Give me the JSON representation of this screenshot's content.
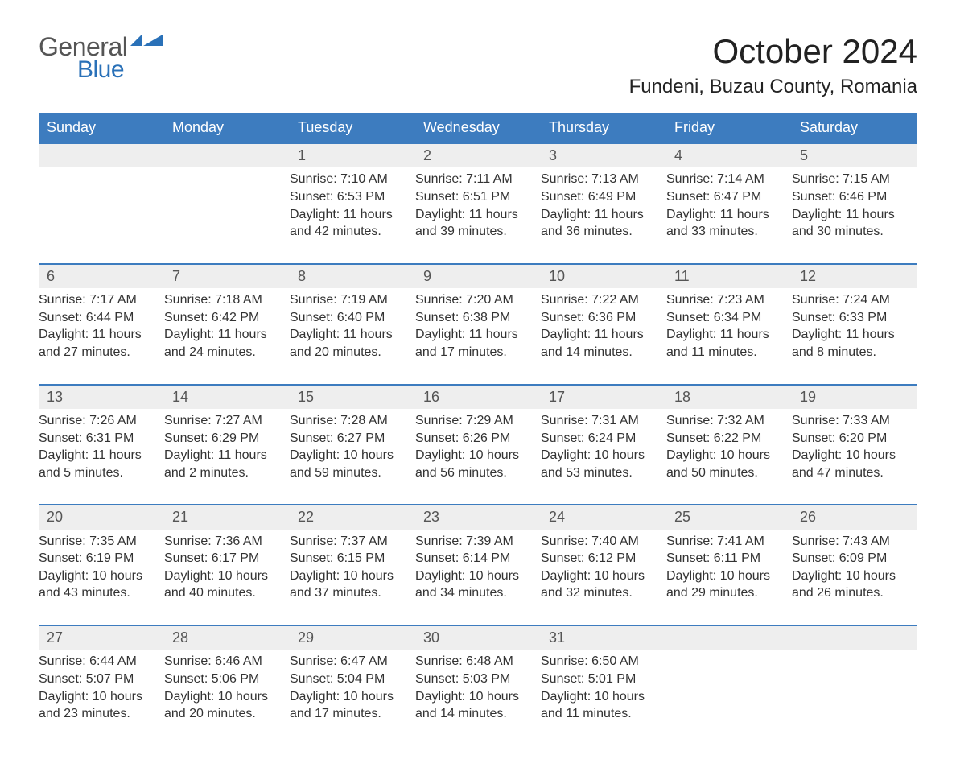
{
  "logo": {
    "word1": "General",
    "word2": "Blue"
  },
  "title": "October 2024",
  "location": "Fundeni, Buzau County, Romania",
  "day_headers": [
    "Sunday",
    "Monday",
    "Tuesday",
    "Wednesday",
    "Thursday",
    "Friday",
    "Saturday"
  ],
  "styling": {
    "header_bg": "#3d7cbf",
    "header_fg": "#ffffff",
    "row_border": "#3d7cbf",
    "daynum_bg": "#eeeeee",
    "daynum_fg": "#555555",
    "body_fg": "#333333",
    "title_fontsize": 42,
    "location_fontsize": 24,
    "header_fontsize": 18,
    "daynum_fontsize": 18,
    "cell_fontsize": 16,
    "page_bg": "#ffffff",
    "logo_gray": "#555555",
    "logo_blue": "#2a71b8"
  },
  "weeks": [
    [
      {
        "n": "",
        "empty": true,
        "sunrise": "",
        "sunset": "",
        "dl1": "",
        "dl2": ""
      },
      {
        "n": "",
        "empty": true,
        "sunrise": "",
        "sunset": "",
        "dl1": "",
        "dl2": ""
      },
      {
        "n": "1",
        "sunrise": "Sunrise: 7:10 AM",
        "sunset": "Sunset: 6:53 PM",
        "dl1": "Daylight: 11 hours",
        "dl2": "and 42 minutes."
      },
      {
        "n": "2",
        "sunrise": "Sunrise: 7:11 AM",
        "sunset": "Sunset: 6:51 PM",
        "dl1": "Daylight: 11 hours",
        "dl2": "and 39 minutes."
      },
      {
        "n": "3",
        "sunrise": "Sunrise: 7:13 AM",
        "sunset": "Sunset: 6:49 PM",
        "dl1": "Daylight: 11 hours",
        "dl2": "and 36 minutes."
      },
      {
        "n": "4",
        "sunrise": "Sunrise: 7:14 AM",
        "sunset": "Sunset: 6:47 PM",
        "dl1": "Daylight: 11 hours",
        "dl2": "and 33 minutes."
      },
      {
        "n": "5",
        "sunrise": "Sunrise: 7:15 AM",
        "sunset": "Sunset: 6:46 PM",
        "dl1": "Daylight: 11 hours",
        "dl2": "and 30 minutes."
      }
    ],
    [
      {
        "n": "6",
        "sunrise": "Sunrise: 7:17 AM",
        "sunset": "Sunset: 6:44 PM",
        "dl1": "Daylight: 11 hours",
        "dl2": "and 27 minutes."
      },
      {
        "n": "7",
        "sunrise": "Sunrise: 7:18 AM",
        "sunset": "Sunset: 6:42 PM",
        "dl1": "Daylight: 11 hours",
        "dl2": "and 24 minutes."
      },
      {
        "n": "8",
        "sunrise": "Sunrise: 7:19 AM",
        "sunset": "Sunset: 6:40 PM",
        "dl1": "Daylight: 11 hours",
        "dl2": "and 20 minutes."
      },
      {
        "n": "9",
        "sunrise": "Sunrise: 7:20 AM",
        "sunset": "Sunset: 6:38 PM",
        "dl1": "Daylight: 11 hours",
        "dl2": "and 17 minutes."
      },
      {
        "n": "10",
        "sunrise": "Sunrise: 7:22 AM",
        "sunset": "Sunset: 6:36 PM",
        "dl1": "Daylight: 11 hours",
        "dl2": "and 14 minutes."
      },
      {
        "n": "11",
        "sunrise": "Sunrise: 7:23 AM",
        "sunset": "Sunset: 6:34 PM",
        "dl1": "Daylight: 11 hours",
        "dl2": "and 11 minutes."
      },
      {
        "n": "12",
        "sunrise": "Sunrise: 7:24 AM",
        "sunset": "Sunset: 6:33 PM",
        "dl1": "Daylight: 11 hours",
        "dl2": "and 8 minutes."
      }
    ],
    [
      {
        "n": "13",
        "sunrise": "Sunrise: 7:26 AM",
        "sunset": "Sunset: 6:31 PM",
        "dl1": "Daylight: 11 hours",
        "dl2": "and 5 minutes."
      },
      {
        "n": "14",
        "sunrise": "Sunrise: 7:27 AM",
        "sunset": "Sunset: 6:29 PM",
        "dl1": "Daylight: 11 hours",
        "dl2": "and 2 minutes."
      },
      {
        "n": "15",
        "sunrise": "Sunrise: 7:28 AM",
        "sunset": "Sunset: 6:27 PM",
        "dl1": "Daylight: 10 hours",
        "dl2": "and 59 minutes."
      },
      {
        "n": "16",
        "sunrise": "Sunrise: 7:29 AM",
        "sunset": "Sunset: 6:26 PM",
        "dl1": "Daylight: 10 hours",
        "dl2": "and 56 minutes."
      },
      {
        "n": "17",
        "sunrise": "Sunrise: 7:31 AM",
        "sunset": "Sunset: 6:24 PM",
        "dl1": "Daylight: 10 hours",
        "dl2": "and 53 minutes."
      },
      {
        "n": "18",
        "sunrise": "Sunrise: 7:32 AM",
        "sunset": "Sunset: 6:22 PM",
        "dl1": "Daylight: 10 hours",
        "dl2": "and 50 minutes."
      },
      {
        "n": "19",
        "sunrise": "Sunrise: 7:33 AM",
        "sunset": "Sunset: 6:20 PM",
        "dl1": "Daylight: 10 hours",
        "dl2": "and 47 minutes."
      }
    ],
    [
      {
        "n": "20",
        "sunrise": "Sunrise: 7:35 AM",
        "sunset": "Sunset: 6:19 PM",
        "dl1": "Daylight: 10 hours",
        "dl2": "and 43 minutes."
      },
      {
        "n": "21",
        "sunrise": "Sunrise: 7:36 AM",
        "sunset": "Sunset: 6:17 PM",
        "dl1": "Daylight: 10 hours",
        "dl2": "and 40 minutes."
      },
      {
        "n": "22",
        "sunrise": "Sunrise: 7:37 AM",
        "sunset": "Sunset: 6:15 PM",
        "dl1": "Daylight: 10 hours",
        "dl2": "and 37 minutes."
      },
      {
        "n": "23",
        "sunrise": "Sunrise: 7:39 AM",
        "sunset": "Sunset: 6:14 PM",
        "dl1": "Daylight: 10 hours",
        "dl2": "and 34 minutes."
      },
      {
        "n": "24",
        "sunrise": "Sunrise: 7:40 AM",
        "sunset": "Sunset: 6:12 PM",
        "dl1": "Daylight: 10 hours",
        "dl2": "and 32 minutes."
      },
      {
        "n": "25",
        "sunrise": "Sunrise: 7:41 AM",
        "sunset": "Sunset: 6:11 PM",
        "dl1": "Daylight: 10 hours",
        "dl2": "and 29 minutes."
      },
      {
        "n": "26",
        "sunrise": "Sunrise: 7:43 AM",
        "sunset": "Sunset: 6:09 PM",
        "dl1": "Daylight: 10 hours",
        "dl2": "and 26 minutes."
      }
    ],
    [
      {
        "n": "27",
        "sunrise": "Sunrise: 6:44 AM",
        "sunset": "Sunset: 5:07 PM",
        "dl1": "Daylight: 10 hours",
        "dl2": "and 23 minutes."
      },
      {
        "n": "28",
        "sunrise": "Sunrise: 6:46 AM",
        "sunset": "Sunset: 5:06 PM",
        "dl1": "Daylight: 10 hours",
        "dl2": "and 20 minutes."
      },
      {
        "n": "29",
        "sunrise": "Sunrise: 6:47 AM",
        "sunset": "Sunset: 5:04 PM",
        "dl1": "Daylight: 10 hours",
        "dl2": "and 17 minutes."
      },
      {
        "n": "30",
        "sunrise": "Sunrise: 6:48 AM",
        "sunset": "Sunset: 5:03 PM",
        "dl1": "Daylight: 10 hours",
        "dl2": "and 14 minutes."
      },
      {
        "n": "31",
        "sunrise": "Sunrise: 6:50 AM",
        "sunset": "Sunset: 5:01 PM",
        "dl1": "Daylight: 10 hours",
        "dl2": "and 11 minutes."
      },
      {
        "n": "",
        "empty": true,
        "sunrise": "",
        "sunset": "",
        "dl1": "",
        "dl2": ""
      },
      {
        "n": "",
        "empty": true,
        "sunrise": "",
        "sunset": "",
        "dl1": "",
        "dl2": ""
      }
    ]
  ]
}
